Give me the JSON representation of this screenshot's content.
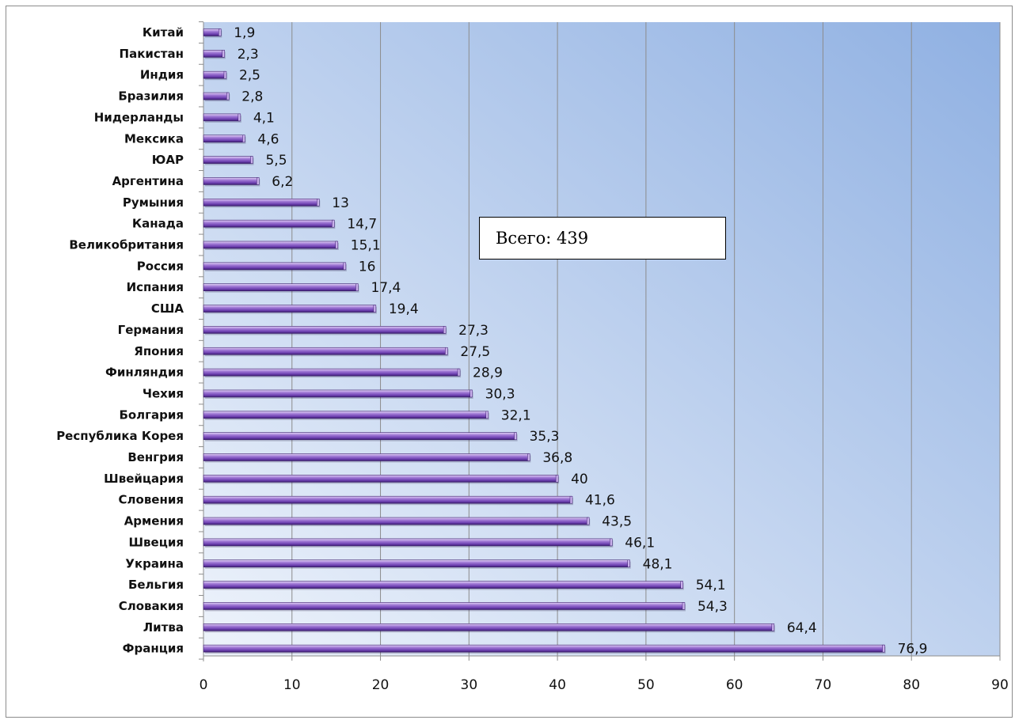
{
  "chart_data": {
    "type": "bar",
    "orientation": "horizontal",
    "categories": [
      "Китай",
      "Пакистан",
      "Индия",
      "Бразилия",
      "Нидерланды",
      "Мексика",
      "ЮАР",
      "Аргентина",
      "Румыния",
      "Канада",
      "Великобритания",
      "Россия",
      "Испания",
      "США",
      "Германия",
      "Япония",
      "Финляндия",
      "Чехия",
      "Болгария",
      "Республика Корея",
      "Венгрия",
      "Швейцария",
      "Словения",
      "Армения",
      "Швеция",
      "Украина",
      "Бельгия",
      "Словакия",
      "Литва",
      "Франция"
    ],
    "values": [
      1.9,
      2.3,
      2.5,
      2.8,
      4.1,
      4.6,
      5.5,
      6.2,
      13,
      14.7,
      15.1,
      16,
      17.4,
      19.4,
      27.3,
      27.5,
      28.9,
      30.3,
      32.1,
      35.3,
      36.8,
      40,
      41.6,
      43.5,
      46.1,
      48.1,
      54.1,
      54.3,
      64.4,
      76.9
    ],
    "value_labels": [
      "1,9",
      "2,3",
      "2,5",
      "2,8",
      "4,1",
      "4,6",
      "5,5",
      "6,2",
      "13",
      "14,7",
      "15,1",
      "16",
      "17,4",
      "19,4",
      "27,3",
      "27,5",
      "28,9",
      "30,3",
      "32,1",
      "35,3",
      "36,8",
      "40",
      "41,6",
      "43,5",
      "46,1",
      "48,1",
      "54,1",
      "54,3",
      "64,4",
      "76,9"
    ],
    "xlim": [
      0,
      90
    ],
    "xticks": [
      "0",
      "10",
      "20",
      "30",
      "40",
      "50",
      "60",
      "70",
      "80",
      "90"
    ],
    "grid": "vertical",
    "legend": "none",
    "colors": {
      "bar_light": "#d6c2f0",
      "bar_mid": "#8a5ec9",
      "bar_dark": "#3d1f70",
      "plot_bg_top": "#93b2e3",
      "plot_bg_bottom": "#eaf0fa",
      "gridline": "#8c8c8c"
    }
  },
  "annotation": {
    "total_text": "Всего: 439"
  }
}
